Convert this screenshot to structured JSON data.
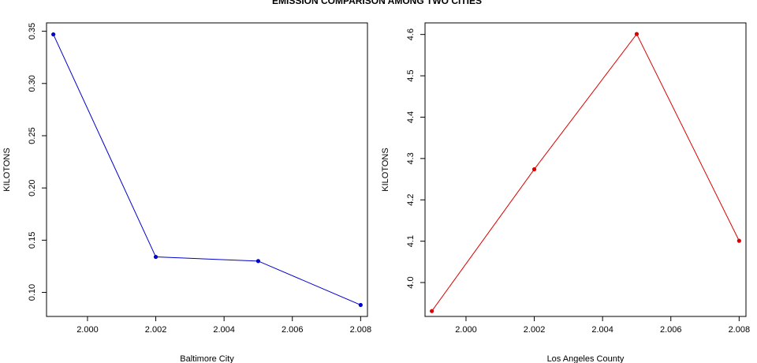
{
  "title": "EMISSION COMPARISON AMONG TWO CITIES",
  "chart_data": [
    {
      "type": "line",
      "xlabel": "Baltimore City",
      "ylabel": "KILOTONS",
      "x": [
        1999,
        2002,
        2005,
        2008
      ],
      "series": [
        {
          "values": [
            0.347,
            0.134,
            0.13,
            0.088
          ],
          "color": "#0000cc"
        }
      ],
      "xlim": [
        1998.8,
        2008.2
      ],
      "ylim": [
        0.077,
        0.358
      ],
      "xticks": [
        2000,
        2002,
        2004,
        2006,
        2008
      ],
      "xtick_labels": [
        "2.000",
        "2.002",
        "2.004",
        "2.006",
        "2.008"
      ],
      "yticks": [
        0.1,
        0.15,
        0.2,
        0.25,
        0.3,
        0.35
      ],
      "ytick_labels": [
        "0.10",
        "0.15",
        "0.20",
        "0.25",
        "0.30",
        "0.35"
      ],
      "grid": false,
      "marker": "circle"
    },
    {
      "type": "line",
      "xlabel": "Los Angeles County",
      "ylabel": "KILOTONS",
      "x": [
        1999,
        2002,
        2005,
        2008
      ],
      "series": [
        {
          "values": [
            3.931,
            4.274,
            4.601,
            4.101
          ],
          "color": "#dd0000"
        }
      ],
      "xlim": [
        1998.8,
        2008.2
      ],
      "ylim": [
        3.918,
        4.628
      ],
      "xticks": [
        2000,
        2002,
        2004,
        2006,
        2008
      ],
      "xtick_labels": [
        "2.000",
        "2.002",
        "2.004",
        "2.006",
        "2.008"
      ],
      "yticks": [
        4.0,
        4.1,
        4.2,
        4.3,
        4.4,
        4.5,
        4.6
      ],
      "ytick_labels": [
        "4.0",
        "4.1",
        "4.2",
        "4.3",
        "4.4",
        "4.5",
        "4.6"
      ],
      "grid": false,
      "marker": "circle"
    }
  ]
}
